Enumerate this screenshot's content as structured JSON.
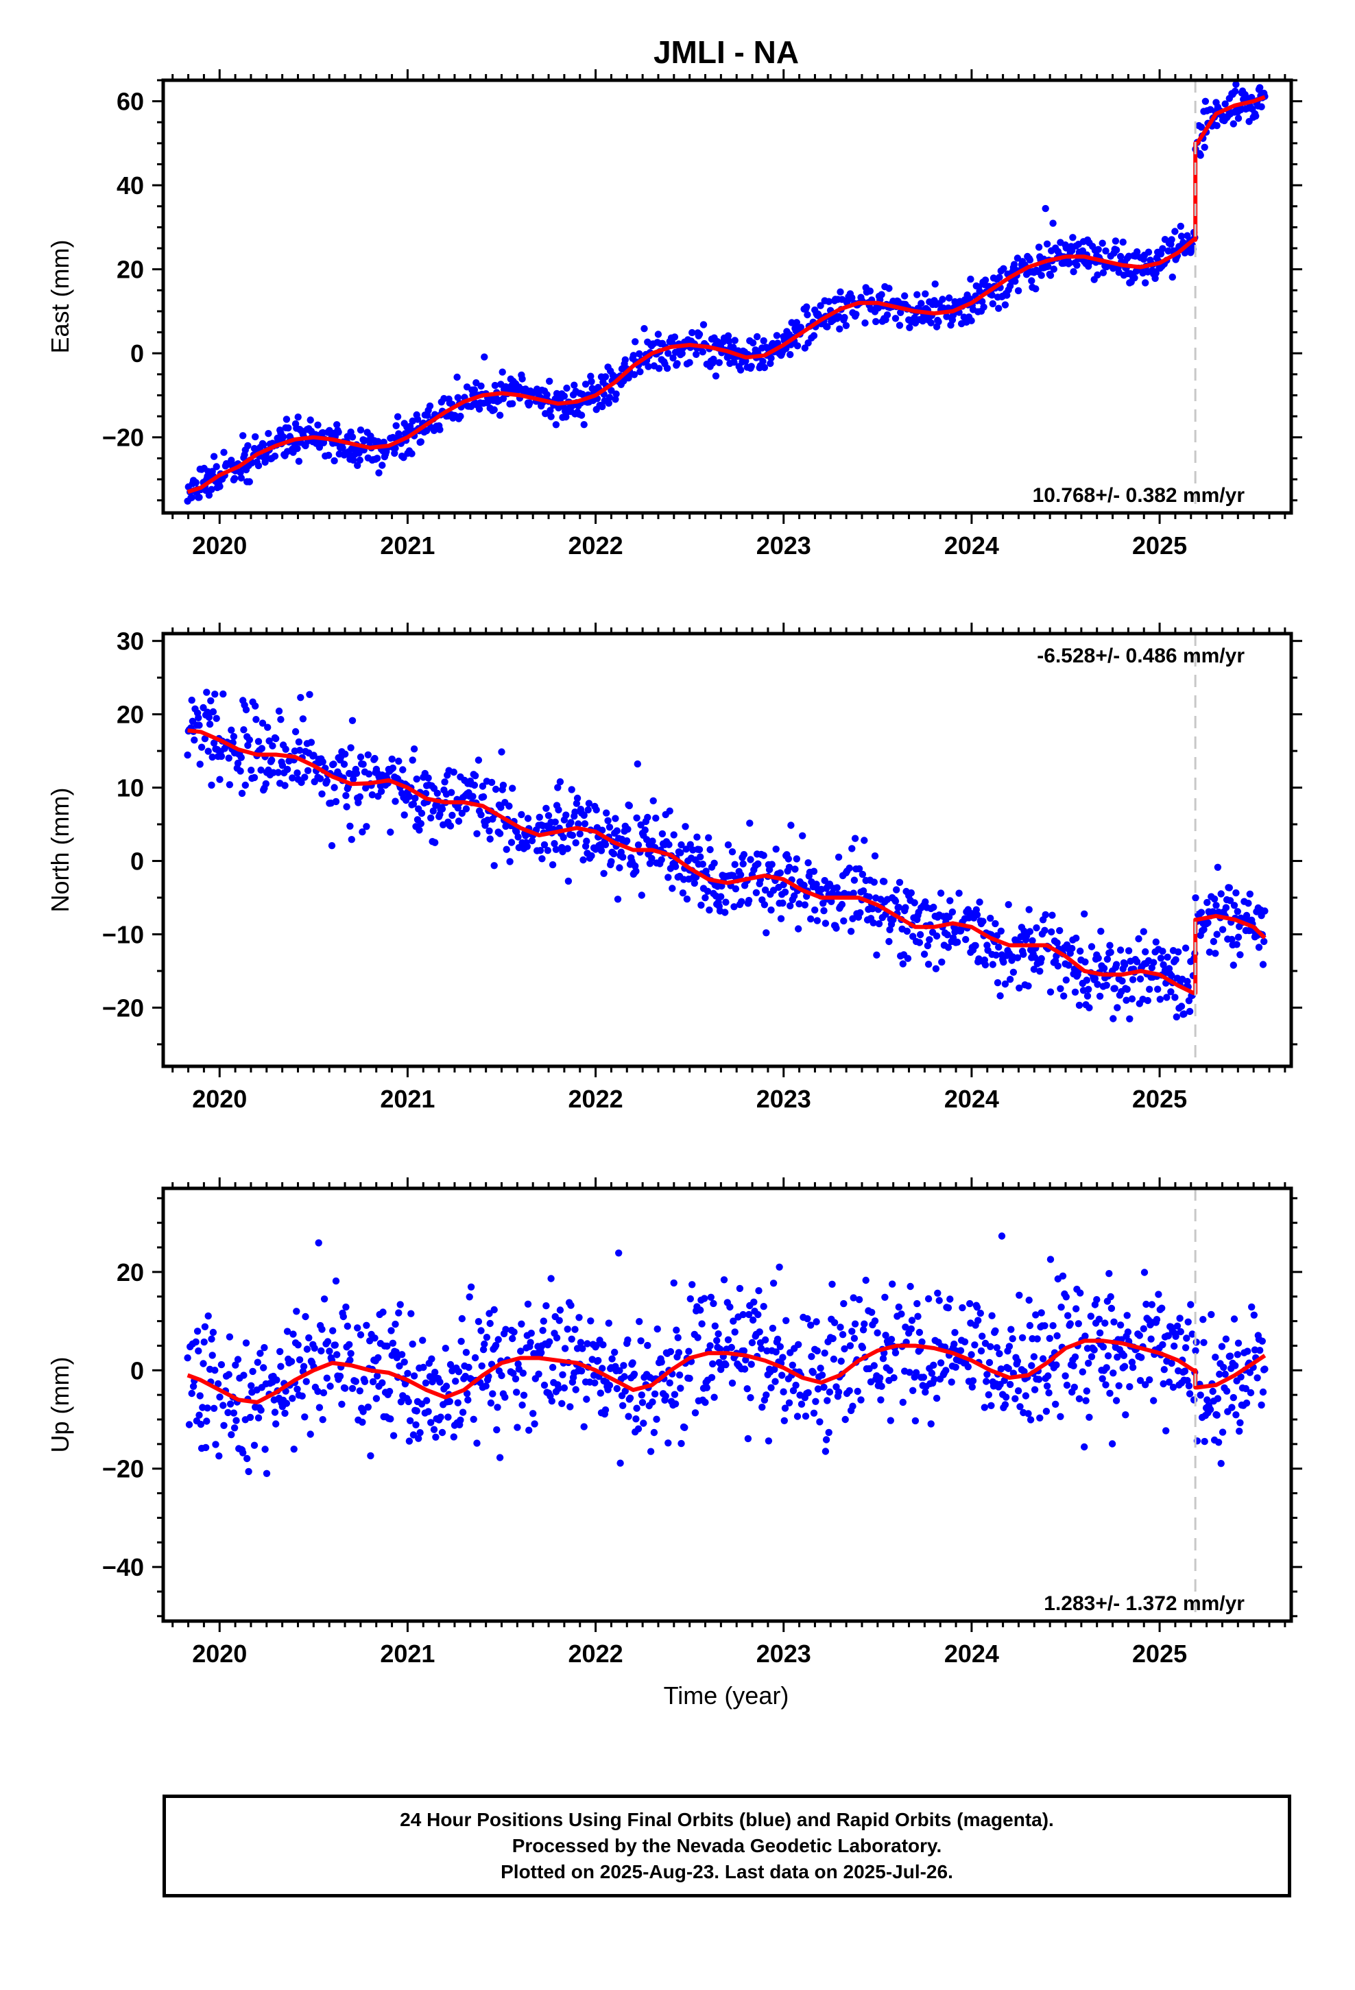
{
  "title": "JMLI - NA",
  "xlabel": "Time (year)",
  "footer": {
    "line1": "24 Hour Positions Using Final Orbits (blue) and Rapid Orbits (magenta).",
    "line2": "Processed by the Nevada Geodetic Laboratory.",
    "line3": "Plotted on 2025-Aug-23. Last data on 2025-Jul-26."
  },
  "colors": {
    "points": "#0000ff",
    "model": "#ff0000",
    "event_line": "#c8c8c8"
  },
  "chart_data": [
    {
      "type": "scatter",
      "name": "east",
      "ylabel": "East (mm)",
      "rate_label": "10.768+/- 0.382 mm/yr",
      "xlim": [
        2019.7,
        2025.7
      ],
      "ylim": [
        -38,
        65
      ],
      "yticks": [
        -20,
        0,
        20,
        40,
        60
      ],
      "xticks": [
        2020,
        2021,
        2022,
        2023,
        2024,
        2025
      ],
      "event_x": 2025.19,
      "x": [
        2019.83,
        2019.9,
        2020.0,
        2020.1,
        2020.2,
        2020.3,
        2020.4,
        2020.5,
        2020.6,
        2020.7,
        2020.8,
        2020.9,
        2021.0,
        2021.1,
        2021.2,
        2021.3,
        2021.4,
        2021.5,
        2021.6,
        2021.7,
        2021.8,
        2021.9,
        2022.0,
        2022.1,
        2022.2,
        2022.3,
        2022.4,
        2022.5,
        2022.6,
        2022.7,
        2022.8,
        2022.9,
        2023.0,
        2023.1,
        2023.2,
        2023.3,
        2023.4,
        2023.5,
        2023.6,
        2023.7,
        2023.8,
        2023.9,
        2024.0,
        2024.1,
        2024.2,
        2024.3,
        2024.4,
        2024.5,
        2024.6,
        2024.7,
        2024.8,
        2024.9,
        2025.0,
        2025.1,
        2025.18,
        2025.2,
        2025.3,
        2025.4,
        2025.5,
        2025.56
      ],
      "model": [
        -33,
        -32,
        -29,
        -27,
        -24,
        -22,
        -20.5,
        -20,
        -20.5,
        -21.5,
        -22.5,
        -22,
        -20,
        -17,
        -14,
        -11.5,
        -10,
        -9.5,
        -10,
        -11,
        -12,
        -11.5,
        -10,
        -7,
        -3,
        0,
        1.5,
        2,
        1.5,
        0.5,
        -1,
        -0.5,
        2,
        5,
        8,
        10.5,
        12,
        12,
        11,
        10,
        9.5,
        10,
        12,
        15,
        18,
        20.5,
        22,
        23,
        23,
        22,
        21,
        20.5,
        21.5,
        24,
        27,
        50,
        57,
        59,
        60,
        61
      ],
      "scatter_seed": 11,
      "scatter_sd": 2.3
    },
    {
      "type": "scatter",
      "name": "north",
      "ylabel": "North (mm)",
      "rate_label": "-6.528+/- 0.486 mm/yr",
      "xlim": [
        2019.7,
        2025.7
      ],
      "ylim": [
        -28,
        31
      ],
      "yticks": [
        -20,
        -10,
        0,
        10,
        20,
        30
      ],
      "xticks": [
        2020,
        2021,
        2022,
        2023,
        2024,
        2025
      ],
      "event_x": 2025.19,
      "x": [
        2019.83,
        2019.9,
        2020.0,
        2020.1,
        2020.2,
        2020.3,
        2020.4,
        2020.5,
        2020.6,
        2020.7,
        2020.8,
        2020.9,
        2021.0,
        2021.1,
        2021.2,
        2021.3,
        2021.4,
        2021.5,
        2021.6,
        2021.7,
        2021.8,
        2021.9,
        2022.0,
        2022.1,
        2022.2,
        2022.3,
        2022.4,
        2022.5,
        2022.6,
        2022.7,
        2022.8,
        2022.9,
        2023.0,
        2023.1,
        2023.2,
        2023.3,
        2023.4,
        2023.5,
        2023.6,
        2023.7,
        2023.8,
        2023.9,
        2024.0,
        2024.1,
        2024.2,
        2024.3,
        2024.4,
        2024.5,
        2024.6,
        2024.7,
        2024.8,
        2024.9,
        2025.0,
        2025.1,
        2025.18,
        2025.2,
        2025.3,
        2025.4,
        2025.5,
        2025.56
      ],
      "model": [
        17.8,
        17.6,
        16.5,
        15.2,
        14.5,
        14.5,
        14.2,
        13,
        11.5,
        10.5,
        10.6,
        11,
        10,
        8.5,
        8,
        8,
        7.5,
        6,
        4.5,
        3.5,
        4,
        4.5,
        4,
        2.5,
        1.5,
        1.5,
        0.8,
        -1,
        -2.5,
        -3,
        -2.5,
        -2,
        -2.5,
        -4,
        -5,
        -5,
        -5,
        -6,
        -7.5,
        -9,
        -9,
        -8.5,
        -9,
        -10.5,
        -11.5,
        -11.5,
        -11.5,
        -13,
        -15,
        -15.5,
        -15.5,
        -15,
        -15.5,
        -17,
        -18,
        -8,
        -7.5,
        -8,
        -9,
        -10.5
      ],
      "scatter_seed": 23,
      "scatter_sd": 2.6
    },
    {
      "type": "scatter",
      "name": "up",
      "ylabel": "Up (mm)",
      "rate_label": "1.283+/- 1.372 mm/yr",
      "xlim": [
        2019.7,
        2025.7
      ],
      "ylim": [
        -51,
        37
      ],
      "yticks": [
        -40,
        -20,
        0,
        20
      ],
      "xticks": [
        2020,
        2021,
        2022,
        2023,
        2024,
        2025
      ],
      "event_x": 2025.19,
      "x": [
        2019.83,
        2019.9,
        2020.0,
        2020.1,
        2020.2,
        2020.3,
        2020.4,
        2020.5,
        2020.6,
        2020.7,
        2020.8,
        2020.9,
        2021.0,
        2021.1,
        2021.2,
        2021.3,
        2021.4,
        2021.5,
        2021.6,
        2021.7,
        2021.8,
        2021.9,
        2022.0,
        2022.1,
        2022.2,
        2022.3,
        2022.4,
        2022.5,
        2022.6,
        2022.7,
        2022.8,
        2022.9,
        2023.0,
        2023.1,
        2023.2,
        2023.3,
        2023.4,
        2023.5,
        2023.6,
        2023.7,
        2023.8,
        2023.9,
        2024.0,
        2024.1,
        2024.2,
        2024.3,
        2024.4,
        2024.5,
        2024.6,
        2024.7,
        2024.8,
        2024.9,
        2025.0,
        2025.1,
        2025.18,
        2025.2,
        2025.3,
        2025.4,
        2025.5,
        2025.56
      ],
      "model": [
        -1,
        -2,
        -4,
        -6,
        -6.5,
        -4.5,
        -2,
        0,
        1.5,
        1,
        0,
        -0.5,
        -2,
        -4,
        -5.5,
        -4,
        -1,
        1.5,
        2.5,
        2.5,
        2,
        1.5,
        0,
        -2,
        -4,
        -3,
        0,
        2.5,
        3.5,
        3.5,
        3,
        2,
        0.5,
        -1.5,
        -2.5,
        -1,
        2,
        4,
        5,
        5,
        4.5,
        3.5,
        2,
        0,
        -1.5,
        -1,
        1.5,
        4.5,
        6,
        6,
        5.5,
        4.5,
        3.5,
        2,
        0,
        -3.5,
        -3,
        -1,
        1.5,
        3
      ],
      "scatter_seed": 37,
      "scatter_sd": 6.5
    }
  ]
}
